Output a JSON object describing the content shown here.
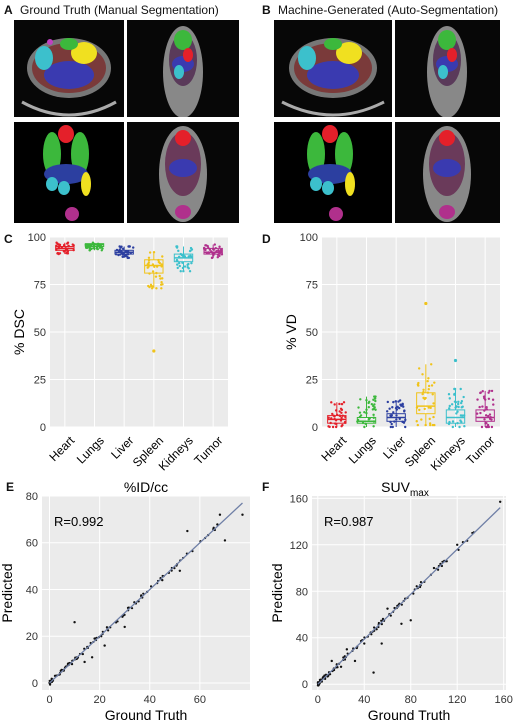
{
  "panels": {
    "A": {
      "letter": "A",
      "title": "Ground Truth (Manual Segmentation)"
    },
    "B": {
      "letter": "B",
      "title": "Machine-Generated (Auto-Segmentation)"
    },
    "C": {
      "letter": "C"
    },
    "D": {
      "letter": "D"
    },
    "E": {
      "letter": "E"
    },
    "F": {
      "letter": "F"
    }
  },
  "colors": {
    "heart": "#e4202a",
    "lungs": "#3cb83c",
    "liver": "#2c3fa0",
    "spleen": "#f0c31a",
    "kidneys": "#3cc0cc",
    "tumor": "#b0308c",
    "panel_bg": "#ebebeb",
    "fit_line": "#6f7fa6"
  },
  "chart_data": [
    {
      "id": "C",
      "type": "box",
      "ylabel": "% DSC",
      "ylim": [
        0,
        100
      ],
      "yticks": [
        0,
        25,
        50,
        75,
        100
      ],
      "categories": [
        "Heart",
        "Lungs",
        "Liver",
        "Spleen",
        "Kidneys",
        "Tumor"
      ],
      "boxes": [
        {
          "q1": 93,
          "median": 94,
          "q3": 95,
          "whisker_low": 91,
          "whisker_high": 97,
          "outliers": []
        },
        {
          "q1": 95,
          "median": 96,
          "q3": 96.5,
          "whisker_low": 93,
          "whisker_high": 97,
          "outliers": []
        },
        {
          "q1": 91,
          "median": 92,
          "q3": 93,
          "whisker_low": 89,
          "whisker_high": 95,
          "outliers": []
        },
        {
          "q1": 81,
          "median": 85,
          "q3": 88,
          "whisker_low": 73,
          "whisker_high": 92,
          "outliers": [
            40
          ]
        },
        {
          "q1": 87,
          "median": 89,
          "q3": 91,
          "whisker_low": 82,
          "whisker_high": 95,
          "outliers": []
        },
        {
          "q1": 91,
          "median": 92,
          "q3": 94,
          "whisker_low": 89,
          "whisker_high": 96,
          "outliers": []
        }
      ]
    },
    {
      "id": "D",
      "type": "box",
      "ylabel": "% VD",
      "ylim": [
        0,
        100
      ],
      "yticks": [
        0,
        25,
        50,
        75,
        100
      ],
      "categories": [
        "Heart",
        "Lungs",
        "Liver",
        "Spleen",
        "Kidneys",
        "Tumor"
      ],
      "boxes": [
        {
          "q1": 2,
          "median": 4,
          "q3": 6,
          "whisker_low": 0,
          "whisker_high": 13,
          "outliers": []
        },
        {
          "q1": 2,
          "median": 3,
          "q3": 5,
          "whisker_low": 0,
          "whisker_high": 16,
          "outliers": []
        },
        {
          "q1": 3,
          "median": 5,
          "q3": 7,
          "whisker_low": 0,
          "whisker_high": 14,
          "outliers": []
        },
        {
          "q1": 7,
          "median": 11,
          "q3": 18,
          "whisker_low": 1,
          "whisker_high": 33,
          "outliers": [
            65
          ]
        },
        {
          "q1": 2,
          "median": 5,
          "q3": 9,
          "whisker_low": 0,
          "whisker_high": 20,
          "outliers": [
            35
          ]
        },
        {
          "q1": 3,
          "median": 5,
          "q3": 9,
          "whisker_low": 0,
          "whisker_high": 19,
          "outliers": []
        }
      ]
    },
    {
      "id": "E",
      "type": "scatter",
      "title": "%ID/cc",
      "xlabel": "Ground Truth",
      "ylabel": "Predicted",
      "annotation": "R=0.992",
      "xlim": [
        -3,
        80
      ],
      "ylim": [
        -3,
        80
      ],
      "xticks": [
        0,
        20,
        40,
        60
      ],
      "yticks": [
        0,
        20,
        40,
        60,
        80
      ],
      "fit": {
        "x": [
          0,
          77
        ],
        "y": [
          0,
          77
        ]
      },
      "outliers": [
        [
          10,
          26
        ],
        [
          14,
          9
        ],
        [
          17,
          11
        ],
        [
          18,
          19
        ],
        [
          22,
          16
        ],
        [
          30,
          24
        ],
        [
          45,
          44
        ],
        [
          52,
          48
        ],
        [
          55,
          65
        ],
        [
          68,
          72
        ],
        [
          70,
          61
        ],
        [
          77,
          72
        ]
      ]
    },
    {
      "id": "F",
      "type": "scatter",
      "title": "SUV",
      "title_subscript": "max",
      "xlabel": "Ground Truth",
      "ylabel": "Predicted",
      "annotation": "R=0.987",
      "xlim": [
        -5,
        162
      ],
      "ylim": [
        -5,
        162
      ],
      "xticks": [
        0,
        40,
        80,
        120,
        160
      ],
      "yticks": [
        0,
        40,
        80,
        120,
        160
      ],
      "fit": {
        "x": [
          0,
          157
        ],
        "y": [
          0,
          152
        ]
      },
      "outliers": [
        [
          12,
          20
        ],
        [
          20,
          15
        ],
        [
          25,
          30
        ],
        [
          32,
          20
        ],
        [
          40,
          35
        ],
        [
          48,
          10
        ],
        [
          50,
          48
        ],
        [
          55,
          35
        ],
        [
          60,
          65
        ],
        [
          72,
          52
        ],
        [
          80,
          55
        ],
        [
          100,
          100
        ],
        [
          120,
          120
        ],
        [
          157,
          157
        ]
      ]
    }
  ]
}
